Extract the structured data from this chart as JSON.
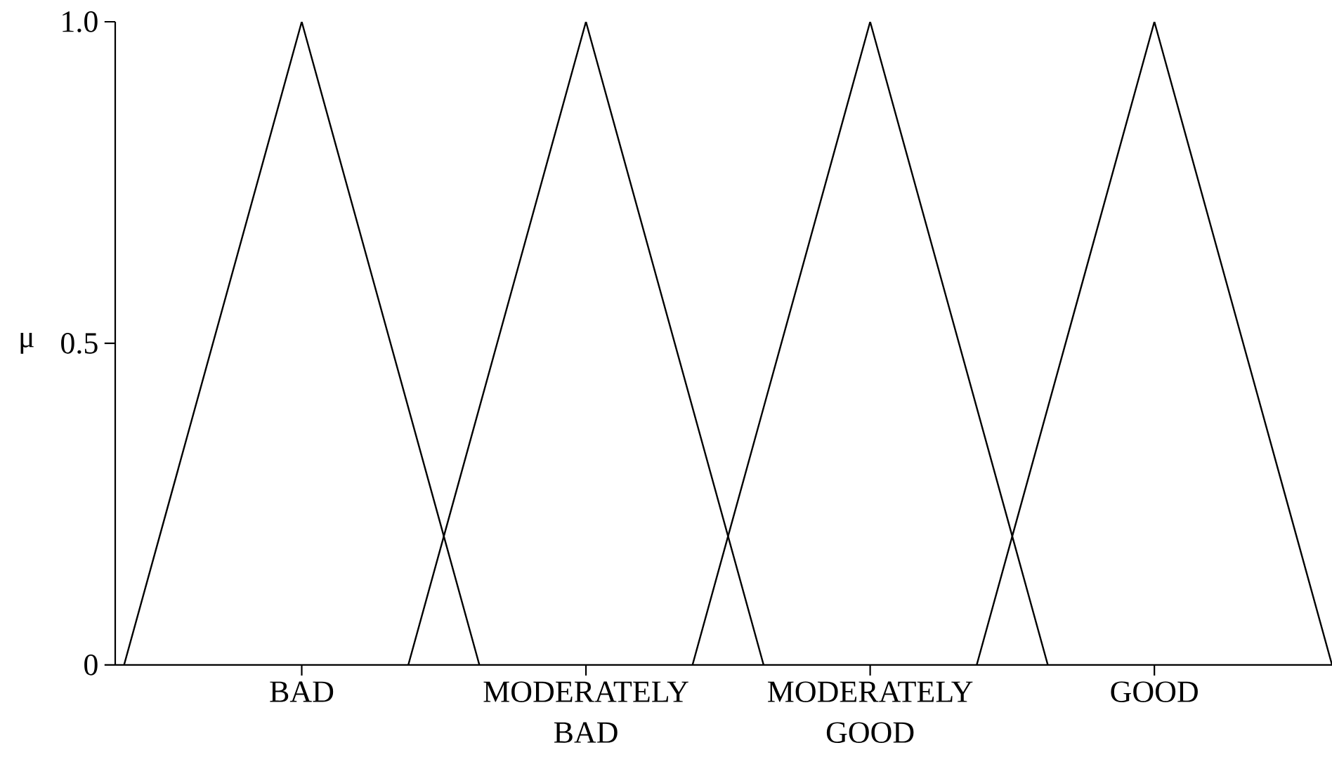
{
  "chart_data": {
    "type": "line",
    "ylabel": "μ",
    "categories": [
      null,
      null,
      null,
      null,
      null,
      "BAD",
      null,
      null,
      null,
      null,
      null,
      null,
      null,
      "MODERATELY BAD",
      null,
      null,
      null,
      null,
      null,
      null,
      null,
      "MODERATELY GOOD",
      null,
      null,
      null,
      null,
      null,
      null,
      null,
      "GOOD",
      null,
      null,
      null,
      null,
      null
    ],
    "ylim": [
      0,
      1
    ],
    "yticks": [
      0,
      0.5,
      {
        "value": 1,
        "label": "1.0"
      }
    ],
    "series": [
      {
        "color": "#000000",
        "values": [
          0,
          0.2,
          0.4,
          0.6,
          0.8,
          1,
          0.8,
          0.6,
          0.4,
          0.2,
          0,
          null,
          null,
          null,
          null,
          null,
          null,
          null,
          null,
          null,
          null,
          null,
          null,
          null,
          null,
          null,
          null,
          null,
          null,
          null,
          null,
          null,
          null,
          null,
          null
        ]
      },
      {
        "color": "#000000",
        "values": [
          null,
          null,
          null,
          null,
          null,
          null,
          null,
          null,
          0,
          0.2,
          0.4,
          0.6,
          0.8,
          1,
          0.8,
          0.6,
          0.4,
          0.2,
          0,
          null,
          null,
          null,
          null,
          null,
          null,
          null,
          null,
          null,
          null,
          null,
          null,
          null,
          null,
          null,
          null
        ]
      },
      {
        "color": "#000000",
        "values": [
          null,
          null,
          null,
          null,
          null,
          null,
          null,
          null,
          null,
          null,
          null,
          null,
          null,
          null,
          null,
          null,
          0,
          0.2,
          0.4,
          0.6,
          0.8,
          1,
          0.8,
          0.6,
          0.4,
          0.2,
          0,
          null,
          null,
          null,
          null,
          null,
          null,
          null,
          null
        ]
      },
      {
        "color": "#000000",
        "values": [
          null,
          null,
          null,
          null,
          null,
          null,
          null,
          null,
          null,
          null,
          null,
          null,
          null,
          null,
          null,
          null,
          null,
          null,
          null,
          null,
          null,
          null,
          null,
          null,
          0,
          0.2,
          0.4,
          0.6,
          0.8,
          1,
          0.8,
          0.6,
          0.4,
          0.2,
          0
        ]
      }
    ],
    "marker": "none",
    "line_style": "solid"
  }
}
